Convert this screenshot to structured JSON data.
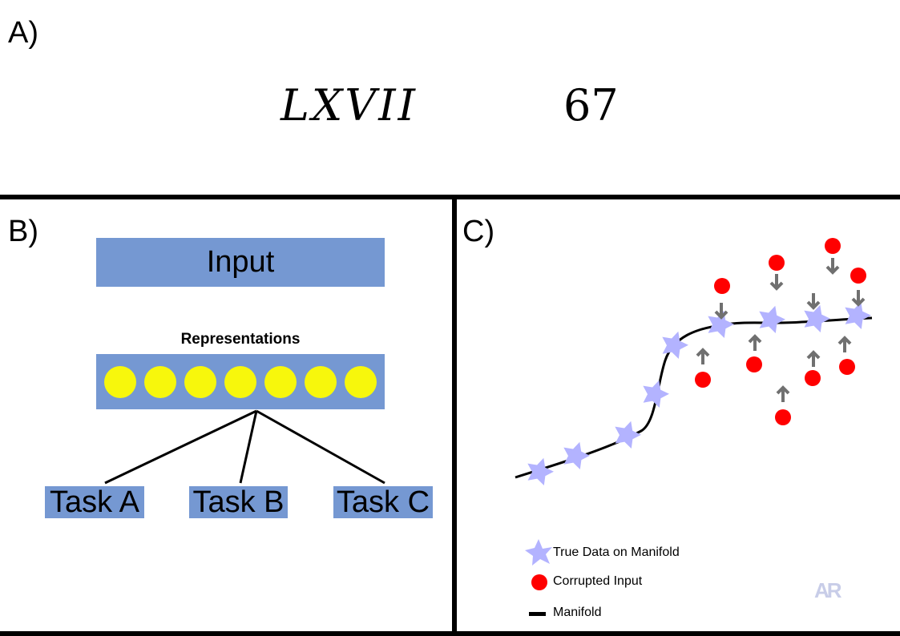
{
  "panel_a": {
    "label": "A)",
    "roman_numeral": "LXVII",
    "arabic_number": "67"
  },
  "panel_b": {
    "label": "B)",
    "input_label": "Input",
    "representations_label": "Representations",
    "neuron_count": 7,
    "tasks": [
      "Task A",
      "Task B",
      "Task C"
    ],
    "colors": {
      "box": "#7598d2",
      "neuron": "#f7f70c"
    }
  },
  "panel_c": {
    "label": "C)",
    "legend": {
      "true_data": "True Data on Manifold",
      "corrupted": "Corrupted Input",
      "manifold": "Manifold"
    },
    "colors": {
      "star": "#b3b3ff",
      "corrupted": "#ff0000",
      "arrow": "#707070",
      "manifold": "#000000"
    },
    "watermark": "AR"
  }
}
